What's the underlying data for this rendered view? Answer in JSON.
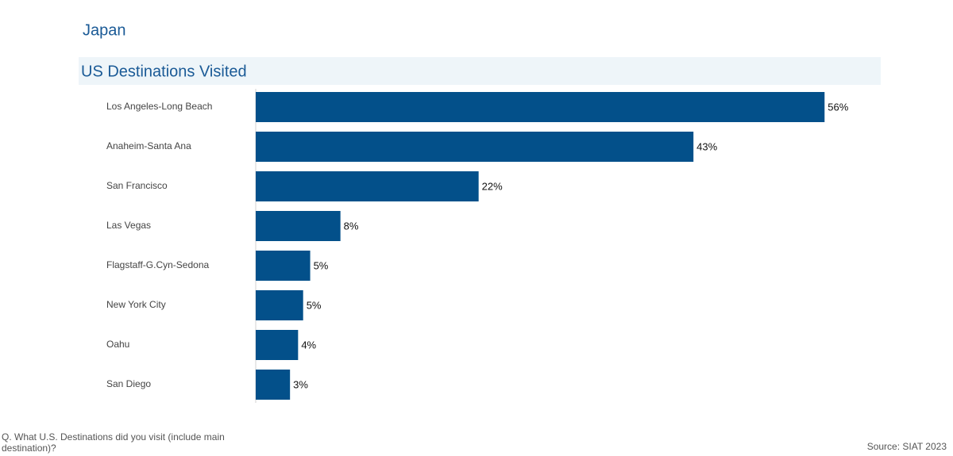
{
  "header": {
    "title": "Japan"
  },
  "chart_data": {
    "type": "bar",
    "orientation": "horizontal",
    "title": "US Destinations Visited",
    "categories": [
      "Los Angeles-Long Beach",
      "Anaheim-Santa Ana",
      "San Francisco",
      "Las Vegas",
      "Flagstaff-G.Cyn-Sedona",
      "New York City",
      "Oahu",
      "San Diego"
    ],
    "values": [
      56.4,
      43.4,
      22.1,
      8.4,
      5.4,
      4.7,
      4.2,
      3.4
    ],
    "value_labels": [
      "56%",
      "43%",
      "22%",
      "8%",
      "5%",
      "5%",
      "4%",
      "3%"
    ],
    "color": "#03508a",
    "xlim": [
      0,
      60
    ]
  },
  "footer": {
    "question": "Q. What U.S. Destinations did you visit (include main destination)?",
    "source": "Source: SIAT 2023"
  }
}
